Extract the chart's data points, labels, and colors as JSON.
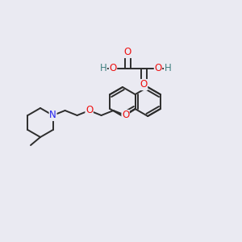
{
  "background_color": "#eaeaf2",
  "bond_color": "#2d2d2d",
  "bond_width": 1.4,
  "atom_colors": {
    "O": "#ee1111",
    "N": "#2222ee",
    "H": "#408080",
    "C": "#2d2d2d"
  },
  "font_size_atom": 8.5
}
